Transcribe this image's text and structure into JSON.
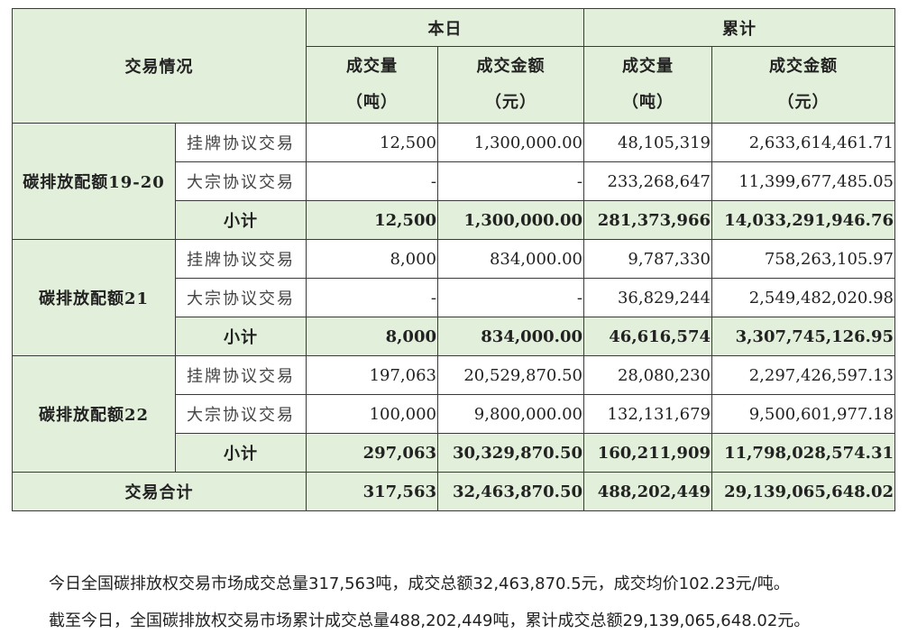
{
  "header": {
    "title": "交易情况",
    "today": "本日",
    "cumulative": "累计",
    "volume": "成交量",
    "volume_unit": "（吨）",
    "amount": "成交金额",
    "amount_unit": "（元）"
  },
  "groups": [
    {
      "name": "碳排放配额19-20",
      "rows": [
        {
          "type": "挂牌协议交易",
          "today_vol": "12,500",
          "today_amt": "1,300,000.00",
          "cum_vol": "48,105,319",
          "cum_amt": "2,633,614,461.71"
        },
        {
          "type": "大宗协议交易",
          "today_vol": "-",
          "today_amt": "-",
          "cum_vol": "233,268,647",
          "cum_amt": "11,399,677,485.05"
        },
        {
          "type": "小计",
          "today_vol": "12,500",
          "today_amt": "1,300,000.00",
          "cum_vol": "281,373,966",
          "cum_amt": "14,033,291,946.76"
        }
      ]
    },
    {
      "name": "碳排放配额21",
      "rows": [
        {
          "type": "挂牌协议交易",
          "today_vol": "8,000",
          "today_amt": "834,000.00",
          "cum_vol": "9,787,330",
          "cum_amt": "758,263,105.97"
        },
        {
          "type": "大宗协议交易",
          "today_vol": "-",
          "today_amt": "-",
          "cum_vol": "36,829,244",
          "cum_amt": "2,549,482,020.98"
        },
        {
          "type": "小计",
          "today_vol": "8,000",
          "today_amt": "834,000.00",
          "cum_vol": "46,616,574",
          "cum_amt": "3,307,745,126.95"
        }
      ]
    },
    {
      "name": "碳排放配额22",
      "rows": [
        {
          "type": "挂牌协议交易",
          "today_vol": "197,063",
          "today_amt": "20,529,870.50",
          "cum_vol": "28,080,230",
          "cum_amt": "2,297,426,597.13"
        },
        {
          "type": "大宗协议交易",
          "today_vol": "100,000",
          "today_amt": "9,800,000.00",
          "cum_vol": "132,131,679",
          "cum_amt": "9,500,601,977.18"
        },
        {
          "type": "小计",
          "today_vol": "297,063",
          "today_amt": "30,329,870.50",
          "cum_vol": "160,211,909",
          "cum_amt": "11,798,028,574.31"
        }
      ]
    }
  ],
  "total": {
    "label": "交易合计",
    "today_vol": "317,563",
    "today_amt": "32,463,870.50",
    "cum_vol": "488,202,449",
    "cum_amt": "29,139,065,648.02"
  },
  "notes": [
    "今日全国碳排放权交易市场成交总量317,563吨，成交总额32,463,870.5元，成交均价102.23元/吨。",
    "截至今日，全国碳排放权交易市场累计成交总量488,202,449吨，累计成交总额29,139,065,648.02元。"
  ]
}
